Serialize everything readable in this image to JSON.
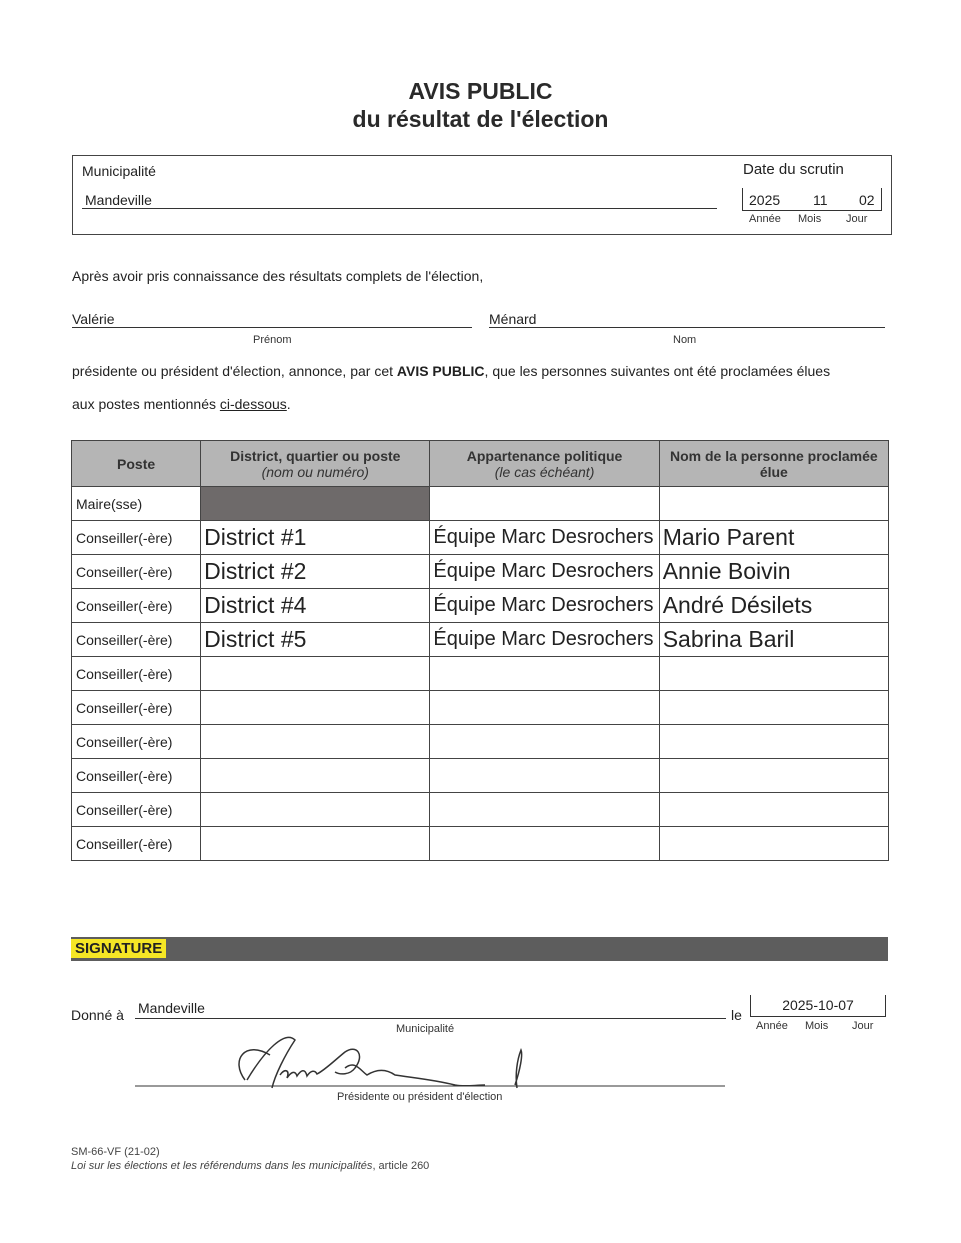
{
  "title_line1": "AVIS PUBLIC",
  "title_line2": "du résultat de l'élection",
  "header": {
    "municipality_label": "Municipalité",
    "municipality_value": "Mandeville",
    "date_label": "Date du scrutin",
    "date_year": "2025",
    "date_month": "11",
    "date_day": "02",
    "year_label": "Année",
    "month_label": "Mois",
    "day_label": "Jour"
  },
  "intro": "Après avoir pris connaissance des résultats complets de l'élection,",
  "officer": {
    "first_name": "Valérie",
    "first_name_label": "Prénom",
    "last_name": "Ménard",
    "last_name_label": "Nom"
  },
  "announce_part1": "présidente ou président d'élection, annonce, par cet ",
  "announce_bold": "AVIS PUBLIC",
  "announce_part2": ", que les personnes suivantes ont été proclamées élues",
  "announce_line2": "aux postes mentionnés ",
  "announce_link": "ci-dessous",
  "announce_end": ".",
  "table": {
    "headers": [
      {
        "main": "Poste",
        "sub": ""
      },
      {
        "main": "District, quartier ou poste",
        "sub": "(nom ou numéro)"
      },
      {
        "main": "Appartenance politique",
        "sub": "(le cas échéant)"
      },
      {
        "main": "Nom de la personne proclamée élue",
        "sub": ""
      }
    ],
    "rows": [
      {
        "poste": "Maire(sse)",
        "district": "",
        "party": "",
        "name": ""
      },
      {
        "poste": "Conseiller(-ère)",
        "district": "District #1",
        "party": "Équipe Marc Desrochers",
        "name": "Mario Parent"
      },
      {
        "poste": "Conseiller(-ère)",
        "district": "District #2",
        "party": "Équipe Marc Desrochers",
        "name": "Annie Boivin"
      },
      {
        "poste": "Conseiller(-ère)",
        "district": "District #4",
        "party": "Équipe Marc Desrochers",
        "name": "André Désilets"
      },
      {
        "poste": "Conseiller(-ère)",
        "district": "District #5",
        "party": "Équipe Marc Desrochers",
        "name": "Sabrina Baril"
      },
      {
        "poste": "Conseiller(-ère)",
        "district": "",
        "party": "",
        "name": ""
      },
      {
        "poste": "Conseiller(-ère)",
        "district": "",
        "party": "",
        "name": ""
      },
      {
        "poste": "Conseiller(-ère)",
        "district": "",
        "party": "",
        "name": ""
      },
      {
        "poste": "Conseiller(-ère)",
        "district": "",
        "party": "",
        "name": ""
      },
      {
        "poste": "Conseiller(-ère)",
        "district": "",
        "party": "",
        "name": ""
      },
      {
        "poste": "Conseiller(-ère)",
        "district": "",
        "party": "",
        "name": ""
      }
    ]
  },
  "signature": {
    "section_label": "SIGNATURE",
    "given_at_label": "Donné à",
    "given_at_value": "Mandeville",
    "municipality_label": "Municipalité",
    "le_label": "le",
    "date_value": "2025-10-07",
    "year_label": "Année",
    "month_label": "Mois",
    "day_label": "Jour",
    "signer_label": "Présidente ou président d'élection",
    "signature_text": "Valérie Ménard",
    "colors": {
      "section_label_bg": "#f5e625",
      "bar": "#5d5d5d"
    }
  },
  "footer": {
    "form_code": "SM-66-VF (21-02)",
    "law_italic": "Loi sur les élections et les référendums dans les municipalités",
    "law_article": ", article 260"
  }
}
